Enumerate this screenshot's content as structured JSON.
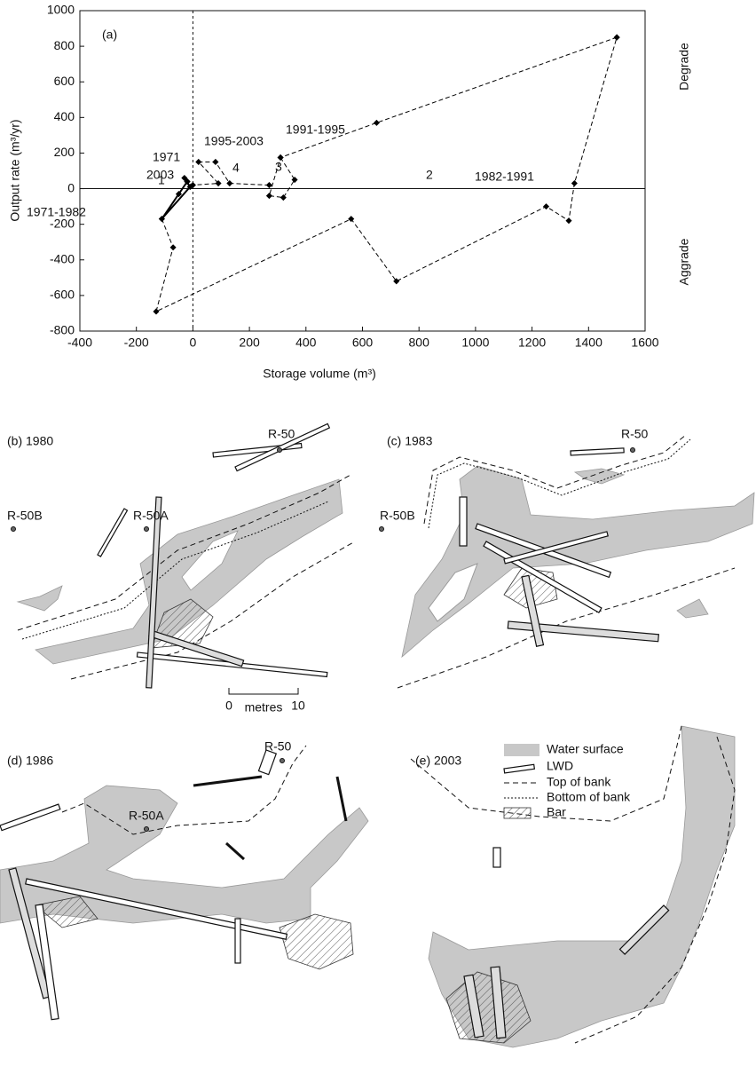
{
  "chart_data": {
    "type": "line",
    "xlabel": "Storage volume (m³)",
    "ylabel": "Output rate (m³/yr)",
    "xlim": [
      -400,
      1600
    ],
    "xticks": [
      -400,
      -200,
      0,
      200,
      400,
      600,
      800,
      1000,
      1200,
      1400,
      1600
    ],
    "ylim": [
      -800,
      1000
    ],
    "yticks": [
      -800,
      -600,
      -400,
      -200,
      0,
      200,
      400,
      600,
      800,
      1000
    ],
    "series": [
      {
        "name": "1971-1982",
        "color": "#000000",
        "dash": false,
        "x": [
          -20,
          -50,
          -110,
          -10,
          -30,
          -20
        ],
        "values": [
          40,
          -30,
          -170,
          10,
          60,
          40
        ]
      },
      {
        "name": "1982-1991",
        "color": "#000000",
        "dash": true,
        "x": [
          -110,
          -70,
          -130,
          560,
          720,
          1250,
          1330,
          1350,
          1500
        ],
        "values": [
          -170,
          -330,
          -690,
          -170,
          -520,
          -100,
          -180,
          30,
          850
        ]
      },
      {
        "name": "1991-1995",
        "color": "#000000",
        "dash": true,
        "x": [
          1500,
          650,
          310,
          270,
          320,
          360,
          310
        ],
        "values": [
          850,
          370,
          175,
          -40,
          -50,
          50,
          175
        ]
      },
      {
        "name": "1995-2003",
        "color": "#000000",
        "dash": true,
        "x": [
          270,
          130,
          80,
          20,
          90,
          0,
          -20
        ],
        "values": [
          20,
          30,
          150,
          150,
          30,
          20,
          40
        ]
      }
    ],
    "annotations": [
      "(a)",
      "1",
      "2",
      "3",
      "4",
      "1971",
      "2003",
      "Degrade",
      "Aggrade"
    ]
  },
  "maps": {
    "panels": [
      {
        "label": "(b) 1980",
        "sites": [
          "R-50",
          "R-50B",
          "R-50A"
        ]
      },
      {
        "label": "(c) 1983",
        "sites": [
          "R-50",
          "R-50B"
        ]
      },
      {
        "label": "(d) 1986",
        "sites": [
          "R-50",
          "R-50A"
        ]
      },
      {
        "label": "(e) 2003"
      }
    ],
    "scale": {
      "start": 0,
      "unit": "metres",
      "end": 10
    },
    "legend": [
      "Water surface",
      "LWD",
      "Top of bank",
      "Bottom of bank",
      "Bar"
    ]
  }
}
